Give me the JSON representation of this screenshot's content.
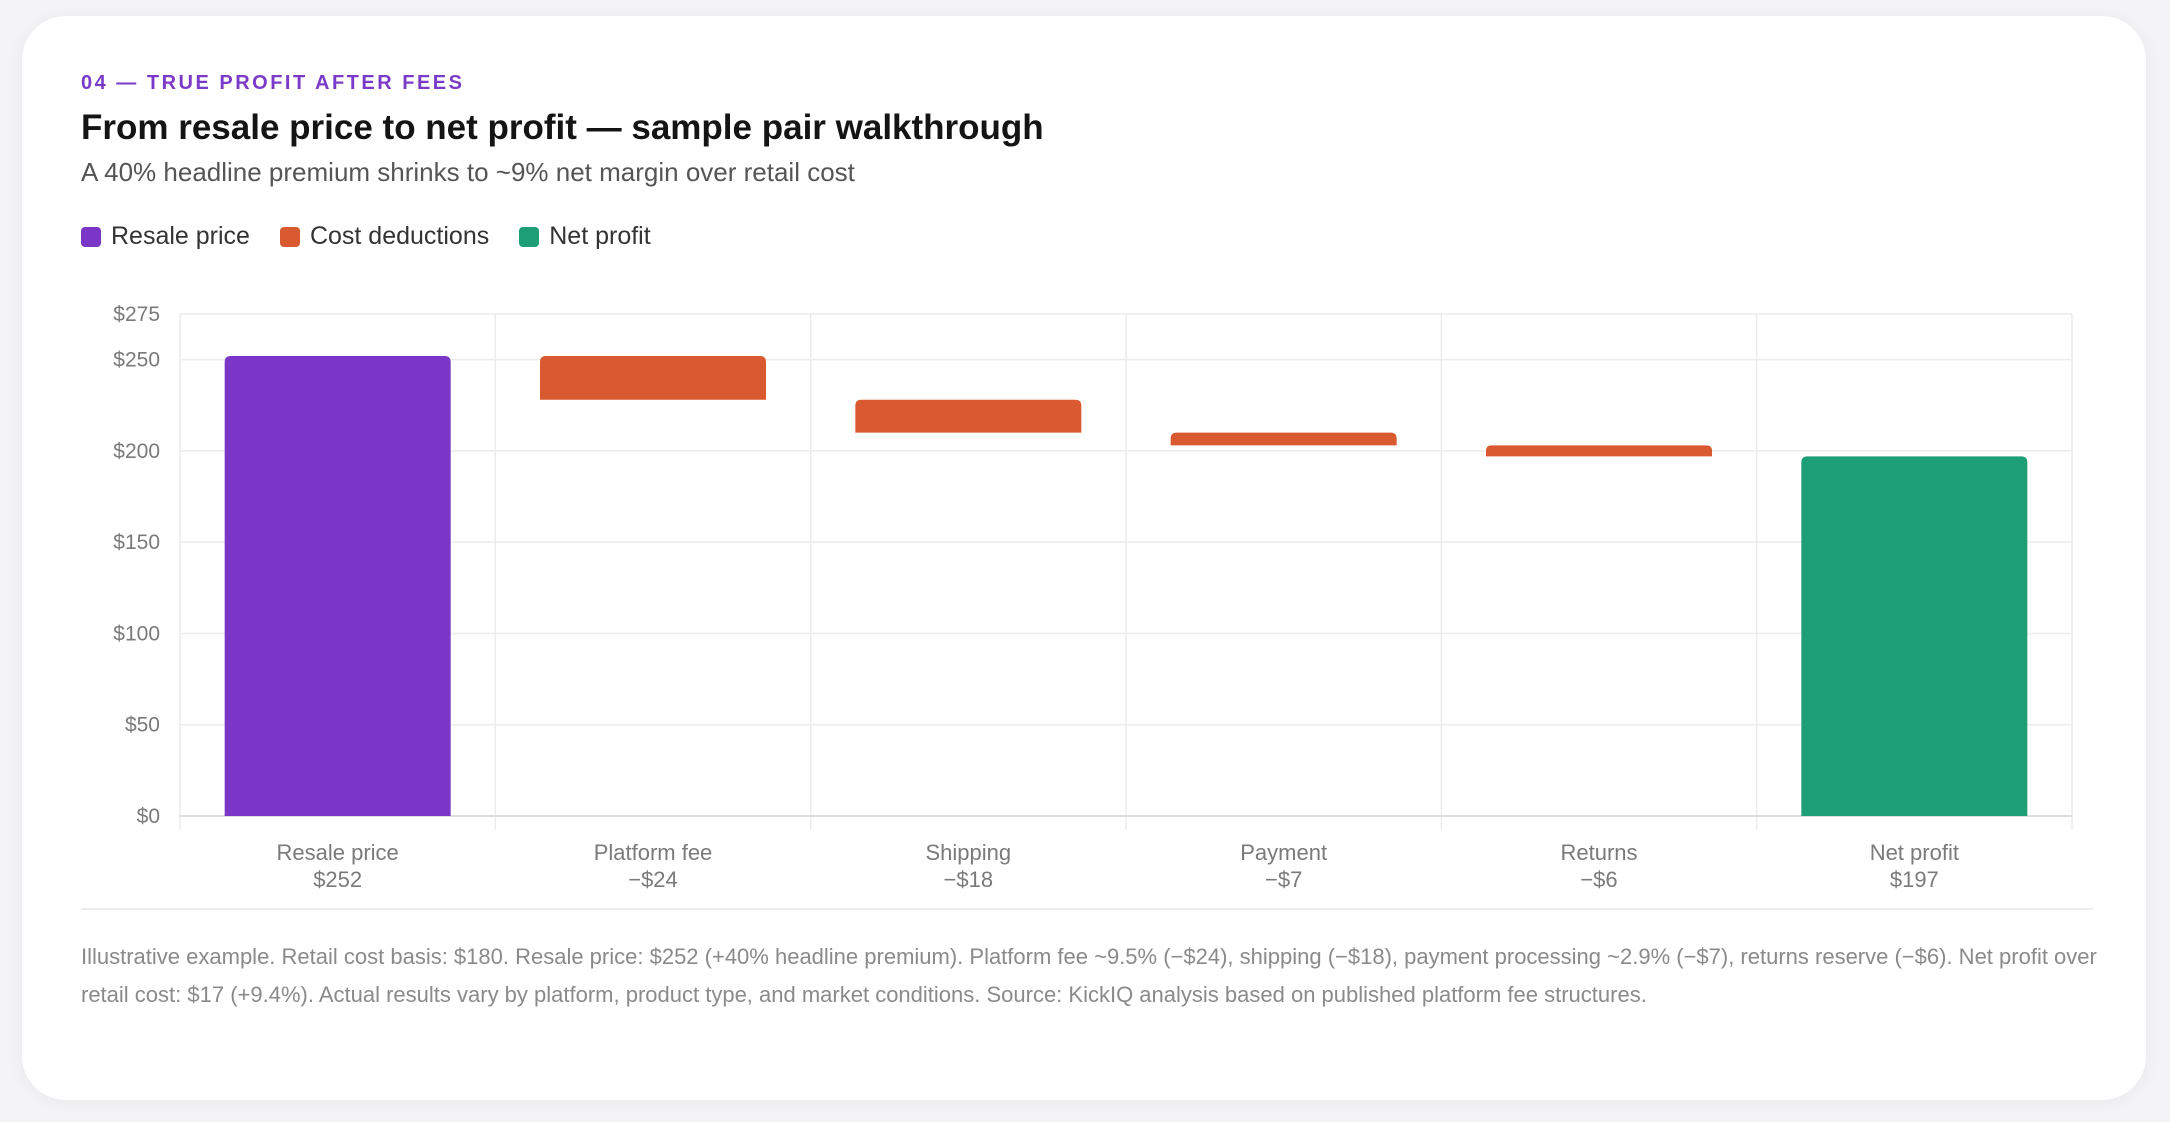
{
  "eyebrow": "04 — TRUE PROFIT AFTER FEES",
  "title": "From resale price to net profit — sample pair walkthrough",
  "subtitle": "A 40% headline premium shrinks to ~9% net margin over retail cost",
  "legend": [
    {
      "label": "Resale price",
      "color": "#7b36c8"
    },
    {
      "label": "Cost deductions",
      "color": "#d95a30"
    },
    {
      "label": "Net profit",
      "color": "#1e9e74"
    }
  ],
  "footnote": "Illustrative example. Retail cost basis: $180. Resale price: $252 (+40% headline premium). Platform fee ~9.5% (−$24), shipping (−$18), payment processing ~2.9% (−$7), returns reserve (−$6). Net profit over retail cost: $17 (+9.4%). Actual results vary by platform, product type, and market conditions. Source: KickIQ analysis based on published platform fee structures.",
  "chart_data": {
    "type": "bar",
    "subtype": "waterfall",
    "ylim": [
      0,
      275
    ],
    "yticks": [
      {
        "value": 0,
        "label": "$0"
      },
      {
        "value": 50,
        "label": "$50"
      },
      {
        "value": 100,
        "label": "$100"
      },
      {
        "value": 150,
        "label": "$150"
      },
      {
        "value": 200,
        "label": "$200"
      },
      {
        "value": 250,
        "label": "$250"
      },
      {
        "value": 275,
        "label": "$275"
      }
    ],
    "grid": true,
    "legend_position": "top-left",
    "bars": [
      {
        "category": "Resale price",
        "value_label": "$252",
        "start": 0,
        "end": 252,
        "kind": "total",
        "color": "#7b36c8"
      },
      {
        "category": "Platform fee",
        "value_label": "−$24",
        "start": 252,
        "end": 228,
        "kind": "deduction",
        "color": "#d95a30"
      },
      {
        "category": "Shipping",
        "value_label": "−$18",
        "start": 228,
        "end": 210,
        "kind": "deduction",
        "color": "#d95a30"
      },
      {
        "category": "Payment",
        "value_label": "−$7",
        "start": 210,
        "end": 203,
        "kind": "deduction",
        "color": "#d95a30"
      },
      {
        "category": "Returns",
        "value_label": "−$6",
        "start": 203,
        "end": 197,
        "kind": "deduction",
        "color": "#d95a30"
      },
      {
        "category": "Net profit",
        "value_label": "$197",
        "start": 0,
        "end": 197,
        "kind": "total",
        "color": "#1e9e74"
      }
    ]
  }
}
